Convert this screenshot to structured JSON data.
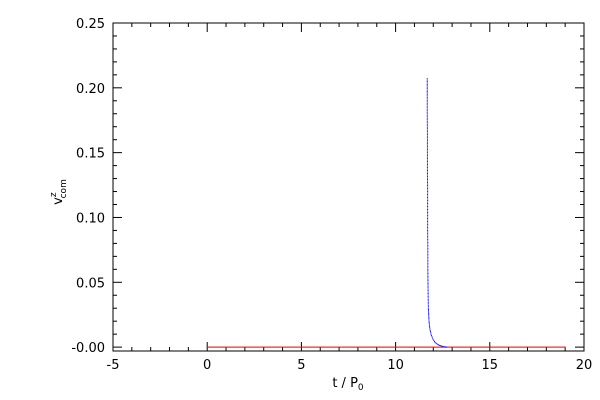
{
  "chart_data": {
    "type": "scatter",
    "title": "",
    "xlabel": "t / P",
    "xlabel_subscript": "0",
    "ylabel": "v",
    "ylabel_superscript": "z",
    "ylabel_subscript": "com",
    "xlim": [
      -5,
      20
    ],
    "ylim": [
      -0.003,
      0.25
    ],
    "x_ticks": [
      -5,
      0,
      5,
      10,
      15,
      20
    ],
    "x_tick_labels": [
      "-5",
      "0",
      "5",
      "10",
      "15",
      "20"
    ],
    "y_ticks": [
      0.0,
      0.05,
      0.1,
      0.15,
      0.2,
      0.25
    ],
    "y_tick_labels": [
      "-0.00",
      "0.05",
      "0.10",
      "0.15",
      "0.20",
      "0.25"
    ],
    "x_minor_step": 1,
    "y_minor_step": 0.01,
    "grid": false,
    "series": [
      {
        "color": "#ff0000",
        "marker": "dot",
        "x_range": [
          0.0,
          19.0
        ],
        "y_constant": 0.0
      },
      {
        "color": "#0000ff",
        "marker": "dot",
        "points": [
          [
            11.68,
            0.207
          ],
          [
            11.68,
            0.195
          ],
          [
            11.68,
            0.18
          ],
          [
            11.69,
            0.165
          ],
          [
            11.69,
            0.15
          ],
          [
            11.69,
            0.135
          ],
          [
            11.7,
            0.12
          ],
          [
            11.7,
            0.105
          ],
          [
            11.7,
            0.09
          ],
          [
            11.71,
            0.075
          ],
          [
            11.71,
            0.06
          ],
          [
            11.72,
            0.048
          ],
          [
            11.73,
            0.038
          ],
          [
            11.74,
            0.03
          ],
          [
            11.76,
            0.024
          ],
          [
            11.78,
            0.019
          ],
          [
            11.81,
            0.015
          ],
          [
            11.85,
            0.012
          ],
          [
            11.9,
            0.009
          ],
          [
            11.96,
            0.007
          ],
          [
            12.03,
            0.005
          ],
          [
            12.1,
            0.0035
          ],
          [
            12.2,
            0.0025
          ],
          [
            12.3,
            0.0015
          ],
          [
            12.4,
            0.001
          ],
          [
            12.5,
            0.0005
          ],
          [
            12.6,
            0.0002
          ],
          [
            12.7,
            0.0
          ]
        ]
      }
    ]
  }
}
